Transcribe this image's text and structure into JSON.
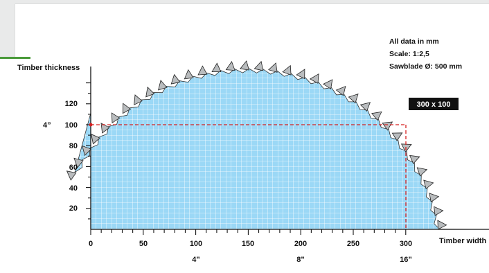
{
  "notes": {
    "data_unit": "All data in mm",
    "scale": "Scale: 1:2,5",
    "sawblade": "Sawblade Ø: 500 mm"
  },
  "axes": {
    "y_title": "Timber thickness",
    "x_title": "Timber width",
    "y_ticks": [
      "20",
      "40",
      "60",
      "80",
      "100",
      "120"
    ],
    "y_inch_label": "4”",
    "x_ticks": [
      "0",
      "50",
      "100",
      "150",
      "200",
      "250",
      "300"
    ],
    "x_inch_labels": [
      "4”",
      "8”",
      "16”"
    ]
  },
  "cut": {
    "label": "300 x 100"
  },
  "colors": {
    "grid_fill": "#9bd8f6",
    "grid_line": "#ffffff",
    "tooth": "#b9bcbe",
    "cut_line": "#d62020",
    "badge": "#111111",
    "header_band": "#e9eaea",
    "accent": "#4a9a3a"
  }
}
